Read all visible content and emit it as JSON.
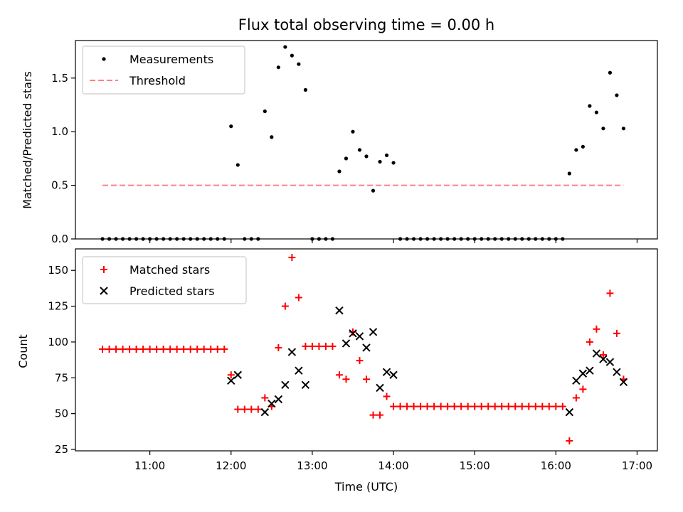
{
  "chart_data": [
    {
      "type": "scatter",
      "title": "Flux total observing time = 0.00 h",
      "xlabel": "",
      "ylabel": "Matched/Predicted stars",
      "ylim": [
        0,
        1.85
      ],
      "yticks": [
        0.0,
        0.5,
        1.0,
        1.5
      ],
      "ytick_labels": [
        "0.0",
        "0.5",
        "1.0",
        "1.5"
      ],
      "grid": false,
      "legend_position": "top-left",
      "series": [
        {
          "name": "Measurements",
          "color": "#000000",
          "marker": "dot",
          "points": [
            [
              "10:25",
              0
            ],
            [
              "10:30",
              0
            ],
            [
              "10:35",
              0
            ],
            [
              "10:40",
              0
            ],
            [
              "10:45",
              0
            ],
            [
              "10:50",
              0
            ],
            [
              "10:55",
              0
            ],
            [
              "11:00",
              0
            ],
            [
              "11:05",
              0
            ],
            [
              "11:10",
              0
            ],
            [
              "11:15",
              0
            ],
            [
              "11:20",
              0
            ],
            [
              "11:25",
              0
            ],
            [
              "11:30",
              0
            ],
            [
              "11:35",
              0
            ],
            [
              "11:40",
              0
            ],
            [
              "11:45",
              0
            ],
            [
              "11:50",
              0
            ],
            [
              "11:55",
              0
            ],
            [
              "12:00",
              1.05
            ],
            [
              "12:05",
              0.69
            ],
            [
              "12:10",
              0
            ],
            [
              "12:15",
              0
            ],
            [
              "12:20",
              0
            ],
            [
              "12:25",
              1.19
            ],
            [
              "12:30",
              0.95
            ],
            [
              "12:35",
              1.6
            ],
            [
              "12:40",
              1.79
            ],
            [
              "12:45",
              1.71
            ],
            [
              "12:50",
              1.63
            ],
            [
              "12:55",
              1.39
            ],
            [
              "13:00",
              0
            ],
            [
              "13:05",
              0
            ],
            [
              "13:10",
              0
            ],
            [
              "13:15",
              0
            ],
            [
              "13:20",
              0.63
            ],
            [
              "13:25",
              0.75
            ],
            [
              "13:30",
              1.0
            ],
            [
              "13:35",
              0.83
            ],
            [
              "13:40",
              0.77
            ],
            [
              "13:45",
              0.45
            ],
            [
              "13:50",
              0.72
            ],
            [
              "13:55",
              0.78
            ],
            [
              "14:00",
              0.71
            ],
            [
              "14:05",
              0
            ],
            [
              "14:10",
              0
            ],
            [
              "14:15",
              0
            ],
            [
              "14:20",
              0
            ],
            [
              "14:25",
              0
            ],
            [
              "14:30",
              0
            ],
            [
              "14:35",
              0
            ],
            [
              "14:40",
              0
            ],
            [
              "14:45",
              0
            ],
            [
              "14:50",
              0
            ],
            [
              "14:55",
              0
            ],
            [
              "15:00",
              0
            ],
            [
              "15:05",
              0
            ],
            [
              "15:10",
              0
            ],
            [
              "15:15",
              0
            ],
            [
              "15:20",
              0
            ],
            [
              "15:25",
              0
            ],
            [
              "15:30",
              0
            ],
            [
              "15:35",
              0
            ],
            [
              "15:40",
              0
            ],
            [
              "15:45",
              0
            ],
            [
              "15:50",
              0
            ],
            [
              "15:55",
              0
            ],
            [
              "16:00",
              0
            ],
            [
              "16:05",
              0
            ],
            [
              "16:10",
              0.61
            ],
            [
              "16:15",
              0.83
            ],
            [
              "16:20",
              0.86
            ],
            [
              "16:25",
              1.24
            ],
            [
              "16:30",
              1.18
            ],
            [
              "16:35",
              1.03
            ],
            [
              "16:40",
              1.55
            ],
            [
              "16:45",
              1.34
            ],
            [
              "16:50",
              1.03
            ]
          ]
        },
        {
          "name": "Threshold",
          "color": "#ff8080",
          "line_style": "dashed",
          "points": [
            [
              "10:25",
              0.5
            ],
            [
              "16:50",
              0.5
            ]
          ]
        }
      ]
    },
    {
      "type": "scatter",
      "title": "",
      "xlabel": "Time (UTC)",
      "ylabel": "Count",
      "ylim": [
        24,
        165
      ],
      "yticks": [
        25,
        50,
        75,
        100,
        125,
        150
      ],
      "ytick_labels": [
        "25",
        "50",
        "75",
        "100",
        "125",
        "150"
      ],
      "xticks": [
        "11:00",
        "12:00",
        "13:00",
        "14:00",
        "15:00",
        "16:00",
        "17:00"
      ],
      "xlim": [
        "10:05",
        "17:15"
      ],
      "grid": false,
      "legend_position": "top-left",
      "series": [
        {
          "name": "Matched stars",
          "color": "#ff0000",
          "marker": "plus",
          "points": [
            [
              "10:25",
              95
            ],
            [
              "10:30",
              95
            ],
            [
              "10:35",
              95
            ],
            [
              "10:40",
              95
            ],
            [
              "10:45",
              95
            ],
            [
              "10:50",
              95
            ],
            [
              "10:55",
              95
            ],
            [
              "11:00",
              95
            ],
            [
              "11:05",
              95
            ],
            [
              "11:10",
              95
            ],
            [
              "11:15",
              95
            ],
            [
              "11:20",
              95
            ],
            [
              "11:25",
              95
            ],
            [
              "11:30",
              95
            ],
            [
              "11:35",
              95
            ],
            [
              "11:40",
              95
            ],
            [
              "11:45",
              95
            ],
            [
              "11:50",
              95
            ],
            [
              "11:55",
              95
            ],
            [
              "12:00",
              77
            ],
            [
              "12:05",
              53
            ],
            [
              "12:10",
              53
            ],
            [
              "12:15",
              53
            ],
            [
              "12:20",
              53
            ],
            [
              "12:25",
              61
            ],
            [
              "12:30",
              55
            ],
            [
              "12:35",
              96
            ],
            [
              "12:40",
              125
            ],
            [
              "12:45",
              159
            ],
            [
              "12:50",
              131
            ],
            [
              "12:55",
              97
            ],
            [
              "13:00",
              97
            ],
            [
              "13:05",
              97
            ],
            [
              "13:10",
              97
            ],
            [
              "13:15",
              97
            ],
            [
              "13:20",
              77
            ],
            [
              "13:25",
              74
            ],
            [
              "13:30",
              107
            ],
            [
              "13:35",
              87
            ],
            [
              "13:40",
              74
            ],
            [
              "13:45",
              49
            ],
            [
              "13:50",
              49
            ],
            [
              "13:55",
              62
            ],
            [
              "14:00",
              55
            ],
            [
              "14:05",
              55
            ],
            [
              "14:10",
              55
            ],
            [
              "14:15",
              55
            ],
            [
              "14:20",
              55
            ],
            [
              "14:25",
              55
            ],
            [
              "14:30",
              55
            ],
            [
              "14:35",
              55
            ],
            [
              "14:40",
              55
            ],
            [
              "14:45",
              55
            ],
            [
              "14:50",
              55
            ],
            [
              "14:55",
              55
            ],
            [
              "15:00",
              55
            ],
            [
              "15:05",
              55
            ],
            [
              "15:10",
              55
            ],
            [
              "15:15",
              55
            ],
            [
              "15:20",
              55
            ],
            [
              "15:25",
              55
            ],
            [
              "15:30",
              55
            ],
            [
              "15:35",
              55
            ],
            [
              "15:40",
              55
            ],
            [
              "15:45",
              55
            ],
            [
              "15:50",
              55
            ],
            [
              "15:55",
              55
            ],
            [
              "16:00",
              55
            ],
            [
              "16:05",
              55
            ],
            [
              "16:10",
              31
            ],
            [
              "16:15",
              61
            ],
            [
              "16:20",
              67
            ],
            [
              "16:25",
              100
            ],
            [
              "16:30",
              109
            ],
            [
              "16:35",
              91
            ],
            [
              "16:40",
              134
            ],
            [
              "16:45",
              106
            ],
            [
              "16:50",
              74
            ]
          ]
        },
        {
          "name": "Predicted stars",
          "color": "#000000",
          "marker": "x",
          "points": [
            [
              "12:00",
              73
            ],
            [
              "12:05",
              77
            ],
            [
              "12:25",
              51
            ],
            [
              "12:30",
              57
            ],
            [
              "12:35",
              60
            ],
            [
              "12:40",
              70
            ],
            [
              "12:45",
              93
            ],
            [
              "12:50",
              80
            ],
            [
              "12:55",
              70
            ],
            [
              "13:20",
              122
            ],
            [
              "13:25",
              99
            ],
            [
              "13:30",
              106
            ],
            [
              "13:35",
              104
            ],
            [
              "13:40",
              96
            ],
            [
              "13:45",
              107
            ],
            [
              "13:50",
              68
            ],
            [
              "13:55",
              79
            ],
            [
              "14:00",
              77
            ],
            [
              "16:10",
              51
            ],
            [
              "16:15",
              73
            ],
            [
              "16:20",
              78
            ],
            [
              "16:25",
              80
            ],
            [
              "16:30",
              92
            ],
            [
              "16:35",
              88
            ],
            [
              "16:40",
              86
            ],
            [
              "16:45",
              79
            ],
            [
              "16:50",
              72
            ]
          ]
        }
      ]
    }
  ]
}
